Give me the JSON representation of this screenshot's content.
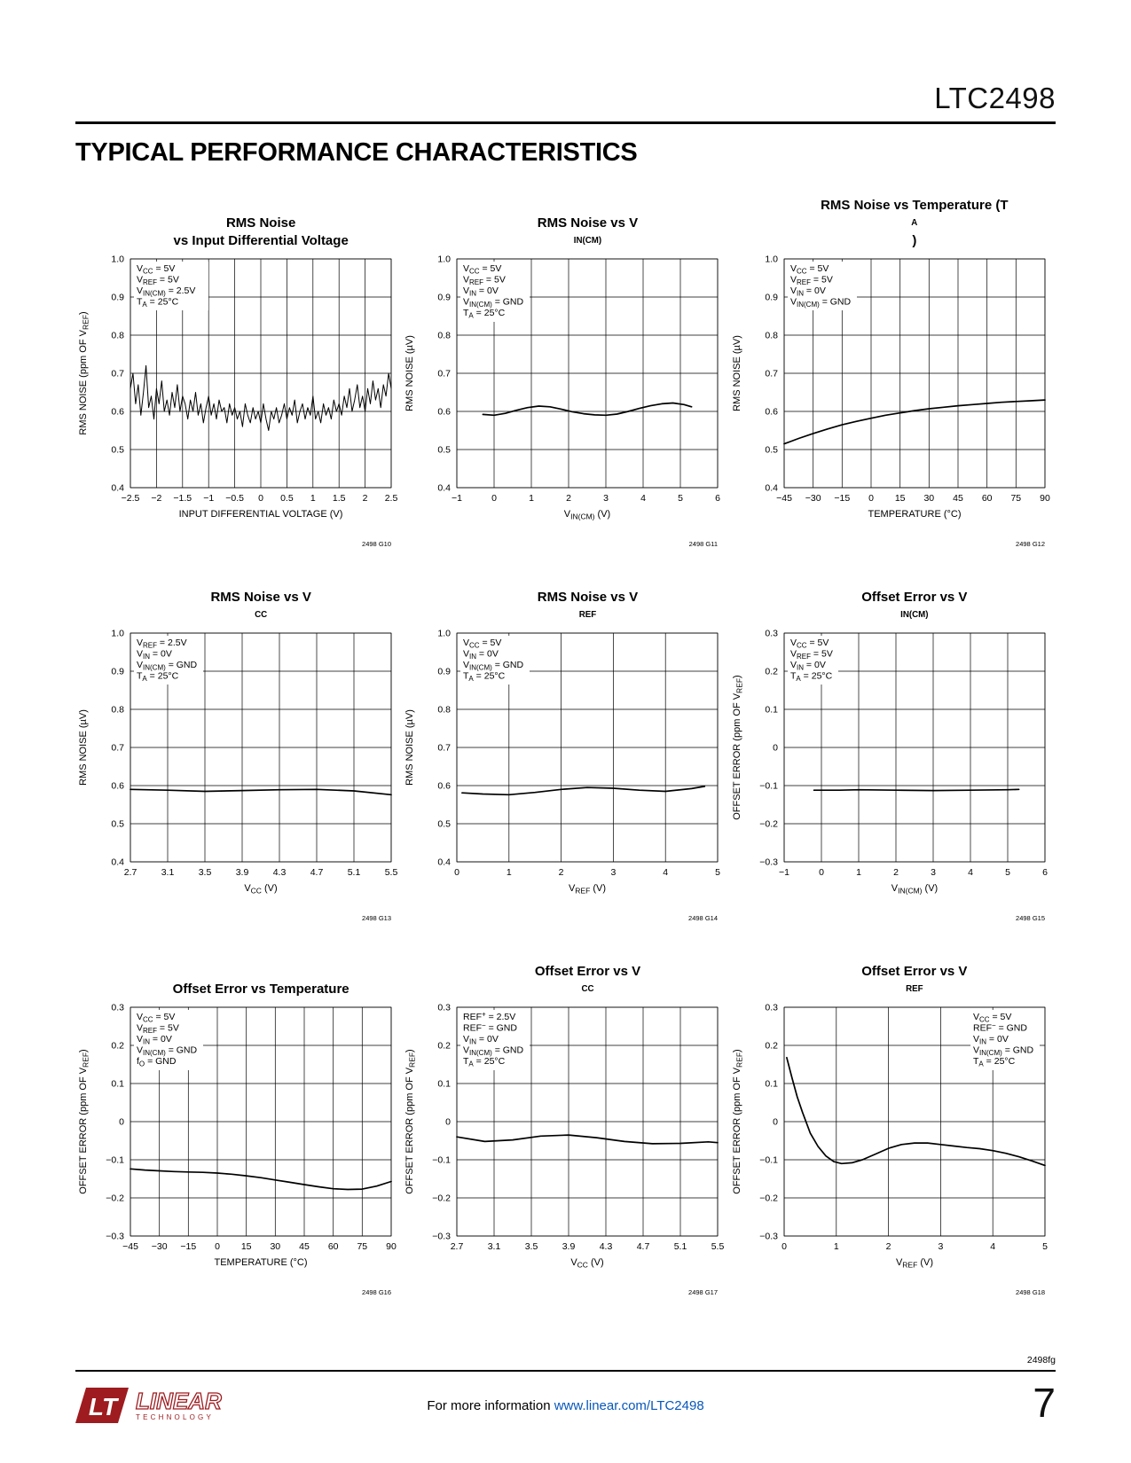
{
  "page": {
    "part_number": "LTC2498",
    "section_title": "TYPICAL PERFORMANCE CHARACTERISTICS",
    "footer": {
      "doc_code": "2498fg",
      "info_prefix": "For more information ",
      "info_link": "www.linear.com/LTC2498",
      "page_number": "7",
      "logo_mark": "LT",
      "logo_primary": "LINEAR",
      "logo_secondary": "TECHNOLOGY",
      "brand_color": "#9e1b1f",
      "link_color": "#0757ba"
    }
  },
  "chart_data": [
    {
      "id": "2498 G10",
      "type": "line",
      "title": [
        "RMS Noise",
        "vs Input Differential Voltage"
      ],
      "xlabel": "INPUT DIFFERENTIAL VOLTAGE (V)",
      "ylabel": "RMS NOISE (ppm OF V_{REF})",
      "xmin": -2.5,
      "xmax": 2.5,
      "ymin": 0.4,
      "ymax": 1.0,
      "xticks": {
        "values": [
          -2.5,
          -2,
          -1.5,
          -1,
          -0.5,
          0,
          0.5,
          1,
          1.5,
          2,
          2.5
        ],
        "labels": [
          "−2.5",
          "−2",
          "−1.5",
          "−1",
          "−0.5",
          "0",
          "0.5",
          "1",
          "1.5",
          "2",
          "2.5"
        ]
      },
      "yticks": {
        "values": [
          0.4,
          0.5,
          0.6,
          0.7,
          0.8,
          0.9,
          1.0
        ],
        "labels": [
          "0.4",
          "0.5",
          "0.6",
          "0.7",
          "0.8",
          "0.9",
          "1.0"
        ]
      },
      "annotations": [
        "V_{CC} = 5V",
        "V_{REF} = 5V",
        "V_{IN(CM)} = 2.5V",
        "T_{A} = 25°C"
      ],
      "ann_pos": "left",
      "line_width": 1.0,
      "series": {
        "y": [
          0.66,
          0.7,
          0.62,
          0.67,
          0.59,
          0.65,
          0.72,
          0.61,
          0.64,
          0.58,
          0.66,
          0.62,
          0.68,
          0.6,
          0.63,
          0.59,
          0.65,
          0.61,
          0.67,
          0.6,
          0.64,
          0.62,
          0.58,
          0.63,
          0.6,
          0.65,
          0.59,
          0.62,
          0.57,
          0.61,
          0.64,
          0.59,
          0.62,
          0.58,
          0.63,
          0.6,
          0.61,
          0.57,
          0.62,
          0.59,
          0.61,
          0.58,
          0.6,
          0.56,
          0.62,
          0.59,
          0.57,
          0.61,
          0.58,
          0.6,
          0.57,
          0.62,
          0.58,
          0.55,
          0.6,
          0.58,
          0.61,
          0.57,
          0.59,
          0.62,
          0.58,
          0.61,
          0.59,
          0.63,
          0.57,
          0.6,
          0.62,
          0.58,
          0.61,
          0.59,
          0.64,
          0.58,
          0.6,
          0.57,
          0.62,
          0.59,
          0.61,
          0.58,
          0.63,
          0.6,
          0.62,
          0.59,
          0.64,
          0.61,
          0.66,
          0.6,
          0.63,
          0.67,
          0.61,
          0.64,
          0.6,
          0.66,
          0.62,
          0.68,
          0.63,
          0.66,
          0.61,
          0.67,
          0.64,
          0.7,
          0.66
        ]
      }
    },
    {
      "id": "2498 G11",
      "type": "line",
      "title": [
        "RMS Noise vs V_{IN(CM)}"
      ],
      "xlabel": "V_{IN(CM)} (V)",
      "ylabel": "RMS NOISE (µV)",
      "xmin": -1,
      "xmax": 6,
      "ymin": 0.4,
      "ymax": 1.0,
      "xticks": {
        "values": [
          -1,
          0,
          1,
          2,
          3,
          4,
          5,
          6
        ],
        "labels": [
          "−1",
          "0",
          "1",
          "2",
          "3",
          "4",
          "5",
          "6"
        ]
      },
      "yticks": {
        "values": [
          0.4,
          0.5,
          0.6,
          0.7,
          0.8,
          0.9,
          1.0
        ],
        "labels": [
          "0.4",
          "0.5",
          "0.6",
          "0.7",
          "0.8",
          "0.9",
          "1.0"
        ]
      },
      "annotations": [
        "V_{CC} = 5V",
        "V_{REF} = 5V",
        "V_{IN} = 0V",
        "V_{IN(CM)} = GND",
        "T_{A} = 25°C"
      ],
      "ann_pos": "left",
      "line_width": 1.7,
      "series": {
        "x": [
          -0.3,
          0,
          0.3,
          0.6,
          0.9,
          1.2,
          1.5,
          1.8,
          2.1,
          2.4,
          2.7,
          3.0,
          3.3,
          3.6,
          3.9,
          4.2,
          4.5,
          4.8,
          5.1,
          5.3
        ],
        "y": [
          0.592,
          0.59,
          0.595,
          0.603,
          0.61,
          0.614,
          0.612,
          0.606,
          0.599,
          0.594,
          0.591,
          0.59,
          0.593,
          0.6,
          0.608,
          0.615,
          0.62,
          0.622,
          0.618,
          0.612
        ]
      }
    },
    {
      "id": "2498 G12",
      "type": "line",
      "title": [
        "RMS Noise vs Temperature (T_{A})"
      ],
      "xlabel": "TEMPERATURE (°C)",
      "ylabel": "RMS NOISE (µV)",
      "xmin": -45,
      "xmax": 90,
      "ymin": 0.4,
      "ymax": 1.0,
      "xticks": {
        "values": [
          -45,
          -30,
          -15,
          0,
          15,
          30,
          45,
          60,
          75,
          90
        ],
        "labels": [
          "−45",
          "−30",
          "−15",
          "0",
          "15",
          "30",
          "45",
          "60",
          "75",
          "90"
        ]
      },
      "yticks": {
        "values": [
          0.4,
          0.5,
          0.6,
          0.7,
          0.8,
          0.9,
          1.0
        ],
        "labels": [
          "0.4",
          "0.5",
          "0.6",
          "0.7",
          "0.8",
          "0.9",
          "1.0"
        ]
      },
      "annotations": [
        "V_{CC} = 5V",
        "V_{REF} = 5V",
        "V_{IN} = 0V",
        "V_{IN(CM)} = GND"
      ],
      "ann_pos": "left",
      "line_width": 1.7,
      "series": {
        "x": [
          -45,
          -37.5,
          -30,
          -22.5,
          -15,
          -7.5,
          0,
          7.5,
          15,
          22.5,
          30,
          37.5,
          45,
          52.5,
          60,
          67.5,
          75,
          82.5,
          90
        ],
        "y": [
          0.515,
          0.529,
          0.542,
          0.554,
          0.565,
          0.574,
          0.582,
          0.59,
          0.596,
          0.602,
          0.607,
          0.611,
          0.615,
          0.618,
          0.621,
          0.624,
          0.626,
          0.628,
          0.63
        ]
      }
    },
    {
      "id": "2498 G13",
      "type": "line",
      "title": [
        "RMS Noise vs V_{CC}"
      ],
      "xlabel": "V_{CC} (V)",
      "ylabel": "RMS NOISE (µV)",
      "xmin": 2.7,
      "xmax": 5.5,
      "ymin": 0.4,
      "ymax": 1.0,
      "xticks": {
        "values": [
          2.7,
          3.1,
          3.5,
          3.9,
          4.3,
          4.7,
          5.1,
          5.5
        ],
        "labels": [
          "2.7",
          "3.1",
          "3.5",
          "3.9",
          "4.3",
          "4.7",
          "5.1",
          "5.5"
        ]
      },
      "yticks": {
        "values": [
          0.4,
          0.5,
          0.6,
          0.7,
          0.8,
          0.9,
          1.0
        ],
        "labels": [
          "0.4",
          "0.5",
          "0.6",
          "0.7",
          "0.8",
          "0.9",
          "1.0"
        ]
      },
      "annotations": [
        "V_{REF} = 2.5V",
        "V_{IN} = 0V",
        "V_{IN(CM)} = GND",
        "T_{A} = 25°C"
      ],
      "ann_pos": "left",
      "line_width": 1.7,
      "series": {
        "x": [
          2.7,
          3.1,
          3.5,
          3.9,
          4.3,
          4.7,
          5.1,
          5.5
        ],
        "y": [
          0.59,
          0.588,
          0.585,
          0.587,
          0.589,
          0.59,
          0.586,
          0.576
        ]
      }
    },
    {
      "id": "2498 G14",
      "type": "line",
      "title": [
        "RMS Noise vs V_{REF}"
      ],
      "xlabel": "V_{REF} (V)",
      "ylabel": "RMS NOISE (µV)",
      "xmin": 0,
      "xmax": 5,
      "ymin": 0.4,
      "ymax": 1.0,
      "xticks": {
        "values": [
          0,
          1,
          2,
          3,
          4,
          5
        ],
        "labels": [
          "0",
          "1",
          "2",
          "3",
          "4",
          "5"
        ]
      },
      "yticks": {
        "values": [
          0.4,
          0.5,
          0.6,
          0.7,
          0.8,
          0.9,
          1.0
        ],
        "labels": [
          "0.4",
          "0.5",
          "0.6",
          "0.7",
          "0.8",
          "0.9",
          "1.0"
        ]
      },
      "annotations": [
        "V_{CC} = 5V",
        "V_{IN} = 0V",
        "V_{IN(CM)} = GND",
        "T_{A} = 25°C"
      ],
      "ann_pos": "left",
      "line_width": 1.7,
      "series": {
        "x": [
          0.1,
          0.5,
          1.0,
          1.5,
          2.0,
          2.5,
          3.0,
          3.5,
          4.0,
          4.5,
          4.75
        ],
        "y": [
          0.581,
          0.578,
          0.576,
          0.582,
          0.59,
          0.595,
          0.593,
          0.588,
          0.585,
          0.592,
          0.598
        ]
      }
    },
    {
      "id": "2498 G15",
      "type": "line",
      "title": [
        "Offset Error vs V_{IN(CM)}"
      ],
      "xlabel": "V_{IN(CM)} (V)",
      "ylabel": "OFFSET ERROR (ppm OF V_{REF})",
      "xmin": -1,
      "xmax": 6,
      "ymin": -0.3,
      "ymax": 0.3,
      "xticks": {
        "values": [
          -1,
          0,
          1,
          2,
          3,
          4,
          5,
          6
        ],
        "labels": [
          "−1",
          "0",
          "1",
          "2",
          "3",
          "4",
          "5",
          "6"
        ]
      },
      "yticks": {
        "values": [
          -0.3,
          -0.2,
          -0.1,
          0,
          0.1,
          0.2,
          0.3
        ],
        "labels": [
          "−0.3",
          "−0.2",
          "−0.1",
          "0",
          "0.1",
          "0.2",
          "0.3"
        ]
      },
      "annotations": [
        "V_{CC} = 5V",
        "V_{REF} = 5V",
        "V_{IN} = 0V",
        "T_{A} = 25°C"
      ],
      "ann_pos": "left",
      "line_width": 1.7,
      "series": {
        "x": [
          -0.2,
          0.5,
          1,
          2,
          3,
          4,
          5,
          5.3
        ],
        "y": [
          -0.112,
          -0.112,
          -0.111,
          -0.112,
          -0.113,
          -0.112,
          -0.111,
          -0.11
        ]
      }
    },
    {
      "id": "2498 G16",
      "type": "line",
      "title": [
        "Offset Error vs Temperature"
      ],
      "xlabel": "TEMPERATURE (°C)",
      "ylabel": "OFFSET ERROR (ppm OF V_{REF})",
      "xmin": -45,
      "xmax": 90,
      "ymin": -0.3,
      "ymax": 0.3,
      "xticks": {
        "values": [
          -45,
          -30,
          -15,
          0,
          15,
          30,
          45,
          60,
          75,
          90
        ],
        "labels": [
          "−45",
          "−30",
          "−15",
          "0",
          "15",
          "30",
          "45",
          "60",
          "75",
          "90"
        ]
      },
      "yticks": {
        "values": [
          -0.3,
          -0.2,
          -0.1,
          0,
          0.1,
          0.2,
          0.3
        ],
        "labels": [
          "−0.3",
          "−0.2",
          "−0.1",
          "0",
          "0.1",
          "0.2",
          "0.3"
        ]
      },
      "annotations": [
        "V_{CC} = 5V",
        "V_{REF} = 5V",
        "V_{IN} = 0V",
        "V_{IN(CM)} = GND",
        "f_{O} = GND"
      ],
      "ann_pos": "left",
      "line_width": 1.7,
      "series": {
        "x": [
          -45,
          -37.5,
          -30,
          -22.5,
          -15,
          -7.5,
          0,
          7.5,
          15,
          22.5,
          30,
          37.5,
          45,
          52.5,
          60,
          67.5,
          75,
          82.5,
          90
        ],
        "y": [
          -0.124,
          -0.127,
          -0.129,
          -0.131,
          -0.132,
          -0.133,
          -0.135,
          -0.138,
          -0.142,
          -0.147,
          -0.153,
          -0.159,
          -0.165,
          -0.171,
          -0.176,
          -0.178,
          -0.177,
          -0.169,
          -0.157
        ]
      }
    },
    {
      "id": "2498 G17",
      "type": "line",
      "title": [
        "Offset Error vs V_{CC}"
      ],
      "xlabel": "V_{CC} (V)",
      "ylabel": "OFFSET ERROR (ppm OF V_{REF})",
      "xmin": 2.7,
      "xmax": 5.5,
      "ymin": -0.3,
      "ymax": 0.3,
      "xticks": {
        "values": [
          2.7,
          3.1,
          3.5,
          3.9,
          4.3,
          4.7,
          5.1,
          5.5
        ],
        "labels": [
          "2.7",
          "3.1",
          "3.5",
          "3.9",
          "4.3",
          "4.7",
          "5.1",
          "5.5"
        ]
      },
      "yticks": {
        "values": [
          -0.3,
          -0.2,
          -0.1,
          0,
          0.1,
          0.2,
          0.3
        ],
        "labels": [
          "−0.3",
          "−0.2",
          "−0.1",
          "0",
          "0.1",
          "0.2",
          "0.3"
        ]
      },
      "annotations": [
        "REF^{+} = 2.5V",
        "REF^{−} = GND",
        "V_{IN} = 0V",
        "V_{IN(CM)} = GND",
        "T_{A} = 25°C"
      ],
      "ann_pos": "left",
      "line_width": 1.7,
      "series": {
        "x": [
          2.7,
          3.0,
          3.3,
          3.6,
          3.9,
          4.2,
          4.5,
          4.8,
          5.1,
          5.4,
          5.5
        ],
        "y": [
          -0.04,
          -0.052,
          -0.048,
          -0.038,
          -0.035,
          -0.042,
          -0.052,
          -0.058,
          -0.057,
          -0.053,
          -0.055
        ]
      }
    },
    {
      "id": "2498 G18",
      "type": "line",
      "title": [
        "Offset Error vs V_{REF}"
      ],
      "xlabel": "V_{REF} (V)",
      "ylabel": "OFFSET ERROR (ppm OF V_{REF})",
      "xmin": 0,
      "xmax": 5,
      "ymin": -0.3,
      "ymax": 0.3,
      "xticks": {
        "values": [
          0,
          1,
          2,
          3,
          4,
          5
        ],
        "labels": [
          "0",
          "1",
          "2",
          "3",
          "4",
          "5"
        ]
      },
      "yticks": {
        "values": [
          -0.3,
          -0.2,
          -0.1,
          0,
          0.1,
          0.2,
          0.3
        ],
        "labels": [
          "−0.3",
          "−0.2",
          "−0.1",
          "0",
          "0.1",
          "0.2",
          "0.3"
        ]
      },
      "annotations": [
        "V_{CC} = 5V",
        "REF^{−} = GND",
        "V_{IN} = 0V",
        "V_{IN(CM)} = GND",
        "T_{A} = 25°C"
      ],
      "ann_pos": "right",
      "line_width": 1.7,
      "series": {
        "x": [
          0.05,
          0.15,
          0.25,
          0.35,
          0.5,
          0.65,
          0.8,
          0.95,
          1.1,
          1.3,
          1.5,
          1.75,
          2.0,
          2.25,
          2.5,
          2.75,
          3.0,
          3.25,
          3.5,
          3.75,
          4.0,
          4.25,
          4.5,
          4.75,
          5.0
        ],
        "y": [
          0.168,
          0.115,
          0.065,
          0.025,
          -0.03,
          -0.065,
          -0.09,
          -0.105,
          -0.11,
          -0.108,
          -0.1,
          -0.085,
          -0.07,
          -0.06,
          -0.056,
          -0.056,
          -0.06,
          -0.064,
          -0.068,
          -0.071,
          -0.076,
          -0.083,
          -0.092,
          -0.103,
          -0.115
        ]
      }
    }
  ]
}
